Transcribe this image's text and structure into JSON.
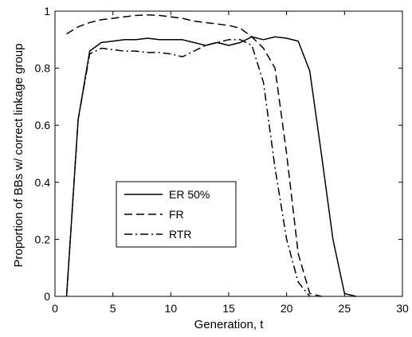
{
  "chart_data": {
    "type": "line",
    "title": "",
    "xlabel": "Generation, t",
    "ylabel": "Proportion of BBs w/ correct linkage group",
    "xlim": [
      0,
      30
    ],
    "ylim": [
      0,
      1
    ],
    "x_ticks": [
      0,
      5,
      10,
      15,
      20,
      25,
      30
    ],
    "y_ticks": [
      0,
      0.2,
      0.4,
      0.6,
      0.8,
      1
    ],
    "x_tick_labels": [
      "0",
      "5",
      "10",
      "15",
      "20",
      "25",
      "30"
    ],
    "y_tick_labels": [
      "0",
      "0.2",
      "0.4",
      "0.6",
      "0.8",
      "1"
    ],
    "grid": false,
    "legend_position": "center-left",
    "series": [
      {
        "name": "ER 50%",
        "line_style": "solid",
        "color": "#000000",
        "x": [
          1,
          2,
          3,
          4,
          5,
          6,
          7,
          8,
          9,
          10,
          11,
          12,
          13,
          14,
          15,
          16,
          17,
          18,
          19,
          20,
          21,
          22,
          23,
          24,
          25,
          26
        ],
        "y": [
          0,
          0.62,
          0.86,
          0.89,
          0.895,
          0.9,
          0.9,
          0.905,
          0.9,
          0.9,
          0.9,
          0.89,
          0.88,
          0.89,
          0.88,
          0.89,
          0.91,
          0.9,
          0.91,
          0.905,
          0.895,
          0.79,
          0.5,
          0.2,
          0.01,
          0
        ]
      },
      {
        "name": "FR",
        "line_style": "dashed",
        "color": "#000000",
        "x": [
          1,
          2,
          3,
          4,
          5,
          6,
          7,
          8,
          9,
          10,
          11,
          12,
          13,
          14,
          15,
          16,
          17,
          18,
          19,
          20,
          21,
          22,
          23
        ],
        "y": [
          0.92,
          0.945,
          0.96,
          0.97,
          0.975,
          0.98,
          0.985,
          0.987,
          0.985,
          0.98,
          0.975,
          0.965,
          0.96,
          0.955,
          0.95,
          0.94,
          0.91,
          0.87,
          0.8,
          0.5,
          0.15,
          0.01,
          0
        ]
      },
      {
        "name": "RTR",
        "line_style": "dashdot",
        "color": "#000000",
        "x": [
          1,
          2,
          3,
          4,
          5,
          6,
          7,
          8,
          9,
          10,
          11,
          12,
          13,
          14,
          15,
          16,
          17,
          18,
          19,
          20,
          21,
          22
        ],
        "y": [
          0,
          0.62,
          0.85,
          0.87,
          0.865,
          0.86,
          0.86,
          0.855,
          0.855,
          0.85,
          0.84,
          0.86,
          0.88,
          0.89,
          0.9,
          0.9,
          0.88,
          0.75,
          0.45,
          0.2,
          0.05,
          0
        ]
      }
    ]
  }
}
